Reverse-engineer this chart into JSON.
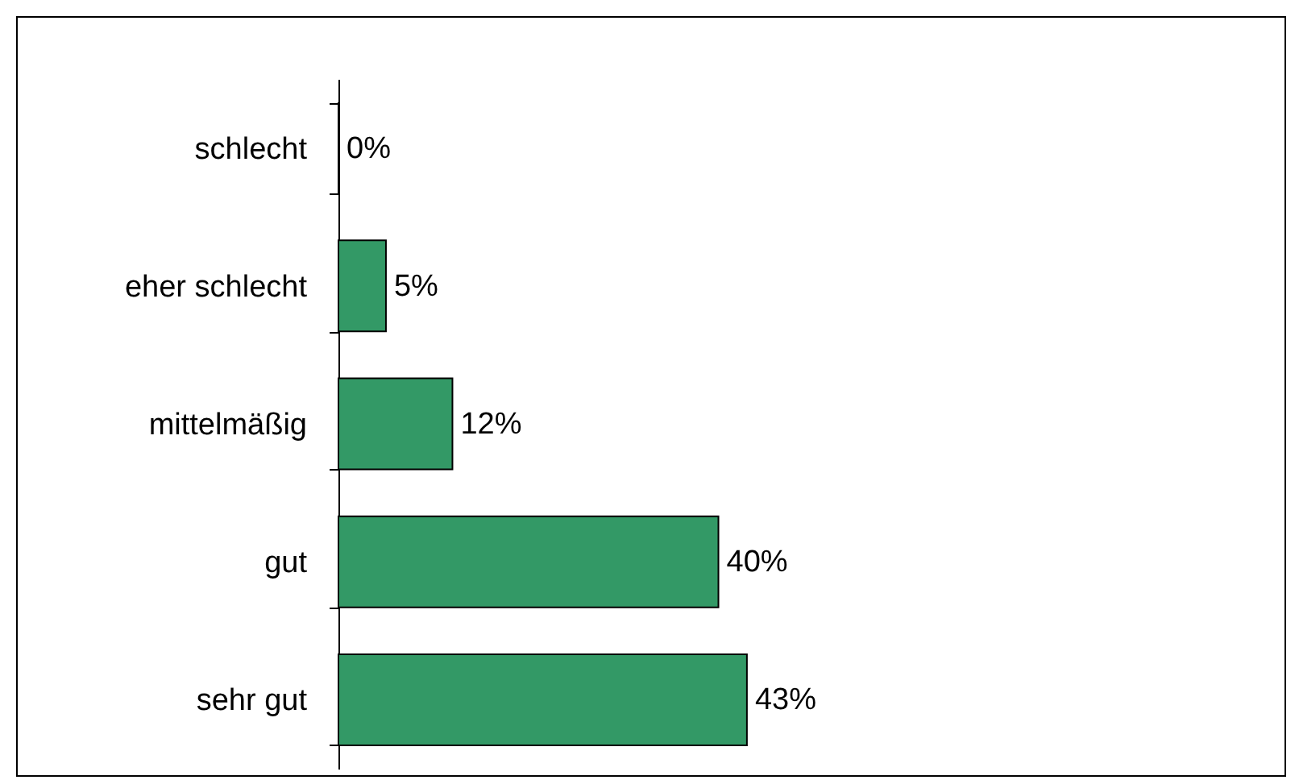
{
  "chart_data": {
    "type": "bar",
    "orientation": "horizontal",
    "categories": [
      "schlecht",
      "eher schlecht",
      "mittelmäßig",
      "gut",
      "sehr gut"
    ],
    "values": [
      0,
      5,
      12,
      40,
      43
    ],
    "value_labels": [
      "0%",
      "5%",
      "12%",
      "40%",
      "43%"
    ],
    "color": "#339966",
    "grid": false,
    "tick_labels": "y"
  }
}
